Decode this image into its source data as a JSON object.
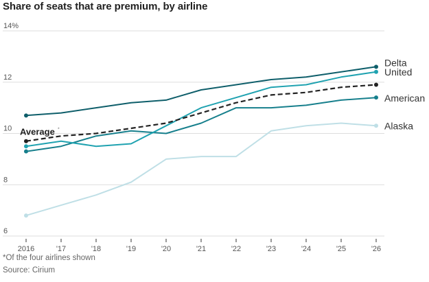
{
  "title": "Share of seats that are premium, by airline",
  "footnote": "*Of the four airlines shown",
  "source": "Source: Cirium",
  "chart_data": {
    "type": "line",
    "title": "Share of seats that are premium, by airline",
    "xlabel": "",
    "ylabel": "",
    "x": [
      2016,
      2017,
      2018,
      2019,
      2020,
      2021,
      2022,
      2023,
      2024,
      2025,
      2026
    ],
    "x_tick_labels": [
      "2016",
      "'17",
      "'18",
      "'19",
      "'20",
      "'21",
      "'22",
      "'23",
      "'24",
      "'25",
      "'26"
    ],
    "y_ticks": [
      6,
      8,
      10,
      12,
      14
    ],
    "y_tick_labels": [
      "6",
      "8",
      "10",
      "12",
      "14%"
    ],
    "ylim": [
      6,
      14
    ],
    "grid": true,
    "legend": "direct labels at right end of lines",
    "series": [
      {
        "name": "Delta",
        "color": "#0e5e6a",
        "dashed": false,
        "values": [
          10.7,
          10.8,
          11.0,
          11.2,
          11.3,
          11.7,
          11.9,
          12.1,
          12.2,
          12.4,
          12.6
        ]
      },
      {
        "name": "United",
        "color": "#1fa2b0",
        "dashed": false,
        "values": [
          9.5,
          9.7,
          9.5,
          9.6,
          10.3,
          11.0,
          11.4,
          11.8,
          11.9,
          12.2,
          12.4
        ]
      },
      {
        "name": "American",
        "color": "#167f8c",
        "dashed": false,
        "values": [
          9.3,
          9.5,
          9.9,
          10.1,
          10.0,
          10.4,
          11.0,
          11.0,
          11.1,
          11.3,
          11.4
        ]
      },
      {
        "name": "Average*",
        "color": "#222222",
        "dashed": true,
        "values": [
          9.7,
          9.9,
          10.0,
          10.2,
          10.4,
          10.8,
          11.2,
          11.5,
          11.6,
          11.8,
          11.9
        ]
      },
      {
        "name": "Alaska",
        "color": "#bfdfe6",
        "dashed": false,
        "values": [
          6.8,
          7.2,
          7.6,
          8.1,
          9.0,
          9.1,
          9.1,
          10.1,
          10.3,
          10.4,
          10.3
        ]
      }
    ],
    "annotations": [
      {
        "text": "Average",
        "superscript": "*",
        "attached_to": "Average*",
        "position": "start"
      }
    ]
  }
}
